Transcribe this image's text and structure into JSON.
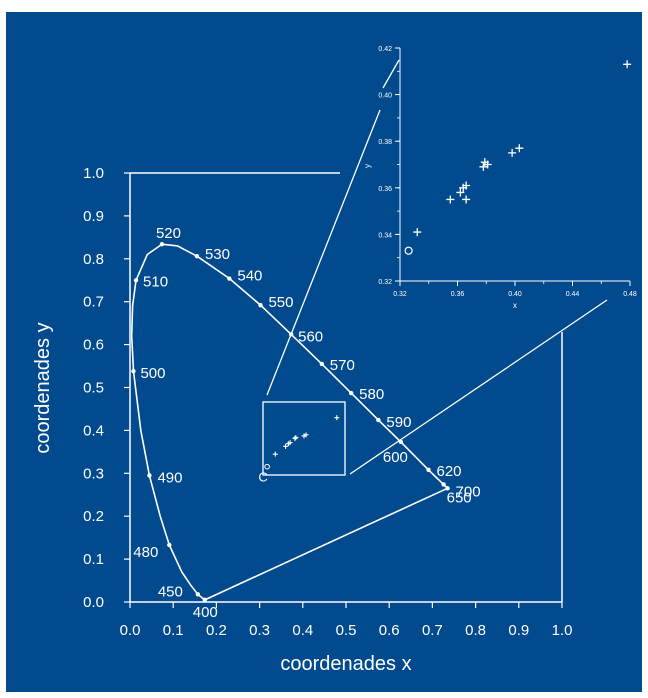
{
  "chart_data": {
    "type": "scatter",
    "title": "",
    "xlabel": "coordenades x",
    "ylabel": "coordenades y",
    "xlim": [
      0.0,
      1.0
    ],
    "ylim": [
      0.0,
      1.0
    ],
    "x_ticks": [
      "0.0",
      "0.1",
      "0.2",
      "0.3",
      "0.4",
      "0.5",
      "0.6",
      "0.7",
      "0.8",
      "0.9",
      "1.0"
    ],
    "y_ticks": [
      "0.0",
      "0.1",
      "0.2",
      "0.3",
      "0.4",
      "0.5",
      "0.6",
      "0.7",
      "0.8",
      "0.9",
      "1.0"
    ],
    "spectral_locus": [
      {
        "nm": "400",
        "x": 0.173,
        "y": 0.005
      },
      {
        "nm": "450",
        "x": 0.157,
        "y": 0.018
      },
      {
        "nm": "",
        "x": 0.14,
        "y": 0.04
      },
      {
        "nm": "",
        "x": 0.12,
        "y": 0.07
      },
      {
        "nm": "480",
        "x": 0.091,
        "y": 0.133
      },
      {
        "nm": "",
        "x": 0.07,
        "y": 0.2
      },
      {
        "nm": "490",
        "x": 0.045,
        "y": 0.295
      },
      {
        "nm": "",
        "x": 0.025,
        "y": 0.4
      },
      {
        "nm": "500",
        "x": 0.008,
        "y": 0.538
      },
      {
        "nm": "",
        "x": 0.004,
        "y": 0.62
      },
      {
        "nm": "",
        "x": 0.006,
        "y": 0.69
      },
      {
        "nm": "510",
        "x": 0.014,
        "y": 0.75
      },
      {
        "nm": "",
        "x": 0.04,
        "y": 0.81
      },
      {
        "nm": "520",
        "x": 0.074,
        "y": 0.834
      },
      {
        "nm": "",
        "x": 0.11,
        "y": 0.83
      },
      {
        "nm": "530",
        "x": 0.155,
        "y": 0.806
      },
      {
        "nm": "540",
        "x": 0.23,
        "y": 0.754
      },
      {
        "nm": "550",
        "x": 0.302,
        "y": 0.692
      },
      {
        "nm": "560",
        "x": 0.373,
        "y": 0.624
      },
      {
        "nm": "570",
        "x": 0.444,
        "y": 0.555
      },
      {
        "nm": "580",
        "x": 0.512,
        "y": 0.487
      },
      {
        "nm": "590",
        "x": 0.575,
        "y": 0.424
      },
      {
        "nm": "600",
        "x": 0.627,
        "y": 0.373
      },
      {
        "nm": "620",
        "x": 0.691,
        "y": 0.308
      },
      {
        "nm": "650",
        "x": 0.726,
        "y": 0.274
      },
      {
        "nm": "700",
        "x": 0.735,
        "y": 0.265
      }
    ],
    "labeled_wavelengths": [
      "400",
      "450",
      "480",
      "490",
      "500",
      "510",
      "520",
      "530",
      "540",
      "550",
      "560",
      "570",
      "580",
      "590",
      "600",
      "620",
      "650",
      "700"
    ],
    "samples_main": [
      {
        "x": 0.33,
        "y": 0.34
      },
      {
        "x": 0.355,
        "y": 0.355
      },
      {
        "x": 0.362,
        "y": 0.36
      },
      {
        "x": 0.366,
        "y": 0.362
      },
      {
        "x": 0.378,
        "y": 0.37
      },
      {
        "x": 0.38,
        "y": 0.372
      },
      {
        "x": 0.4,
        "y": 0.375
      },
      {
        "x": 0.405,
        "y": 0.377
      },
      {
        "x": 0.48,
        "y": 0.41
      }
    ],
    "white_point": {
      "label": "C",
      "x": 0.31,
      "y": 0.316
    },
    "inset": {
      "xlabel": "x",
      "ylabel": "y",
      "xlim": [
        0.32,
        0.48
      ],
      "ylim": [
        0.32,
        0.42
      ],
      "x_ticks": [
        "0.32",
        "0.36",
        "0.40",
        "0.44",
        "0.48"
      ],
      "y_ticks": [
        "0.32",
        "0.34",
        "0.36",
        "0.38",
        "0.40",
        "0.42"
      ],
      "points": [
        {
          "x": 0.332,
          "y": 0.341
        },
        {
          "x": 0.355,
          "y": 0.355
        },
        {
          "x": 0.362,
          "y": 0.358
        },
        {
          "x": 0.364,
          "y": 0.36
        },
        {
          "x": 0.366,
          "y": 0.361
        },
        {
          "x": 0.366,
          "y": 0.355
        },
        {
          "x": 0.378,
          "y": 0.369
        },
        {
          "x": 0.379,
          "y": 0.371
        },
        {
          "x": 0.381,
          "y": 0.37
        },
        {
          "x": 0.398,
          "y": 0.375
        },
        {
          "x": 0.403,
          "y": 0.377
        },
        {
          "x": 0.478,
          "y": 0.413
        }
      ],
      "white_point": {
        "x": 0.326,
        "y": 0.333
      }
    }
  }
}
